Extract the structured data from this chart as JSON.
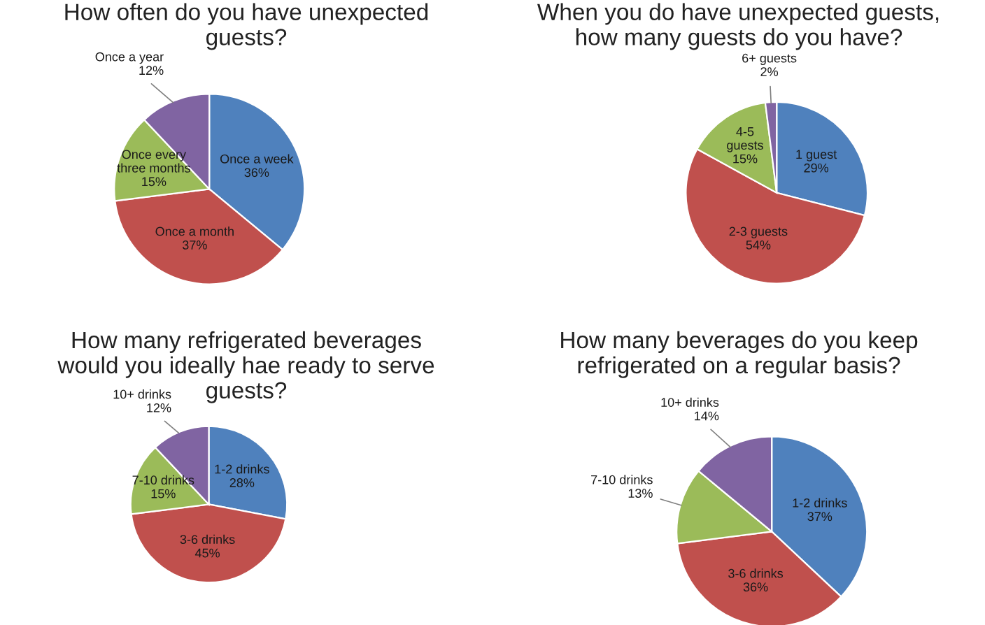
{
  "chart_data": [
    {
      "type": "pie",
      "title": "How often do you have unexpected\nguests?",
      "categories": [
        "Once a week",
        "Once a month",
        "Once every\nthree months",
        "Once a year"
      ],
      "values": [
        36,
        37,
        15,
        12
      ],
      "value_labels": [
        "36%",
        "37%",
        "15%",
        "12%"
      ],
      "colors": [
        "#4f81bd",
        "#c0504d",
        "#9bbb59",
        "#8064a2"
      ]
    },
    {
      "type": "pie",
      "title": "When you do have unexpected guests,\nhow many guests do you have?",
      "categories": [
        "1 guest",
        "2-3 guests",
        "4-5\nguests",
        "6+ guests"
      ],
      "values": [
        29,
        54,
        15,
        2
      ],
      "value_labels": [
        "29%",
        "54%",
        "15%",
        "2%"
      ],
      "colors": [
        "#4f81bd",
        "#c0504d",
        "#9bbb59",
        "#8064a2"
      ]
    },
    {
      "type": "pie",
      "title": "How many refrigerated beverages\nwould you ideally hae ready to serve\nguests?",
      "categories": [
        "1-2 drinks",
        "3-6 drinks",
        "7-10 drinks",
        "10+ drinks"
      ],
      "values": [
        28,
        45,
        15,
        12
      ],
      "value_labels": [
        "28%",
        "45%",
        "15%",
        "12%"
      ],
      "colors": [
        "#4f81bd",
        "#c0504d",
        "#9bbb59",
        "#8064a2"
      ]
    },
    {
      "type": "pie",
      "title": "How many beverages do you keep\nrefrigerated on a regular basis?",
      "categories": [
        "1-2 drinks",
        "3-6 drinks",
        "7-10 drinks",
        "10+ drinks"
      ],
      "values": [
        37,
        36,
        13,
        14
      ],
      "value_labels": [
        "37%",
        "36%",
        "13%",
        "14%"
      ],
      "colors": [
        "#4f81bd",
        "#c0504d",
        "#9bbb59",
        "#8064a2"
      ]
    }
  ]
}
